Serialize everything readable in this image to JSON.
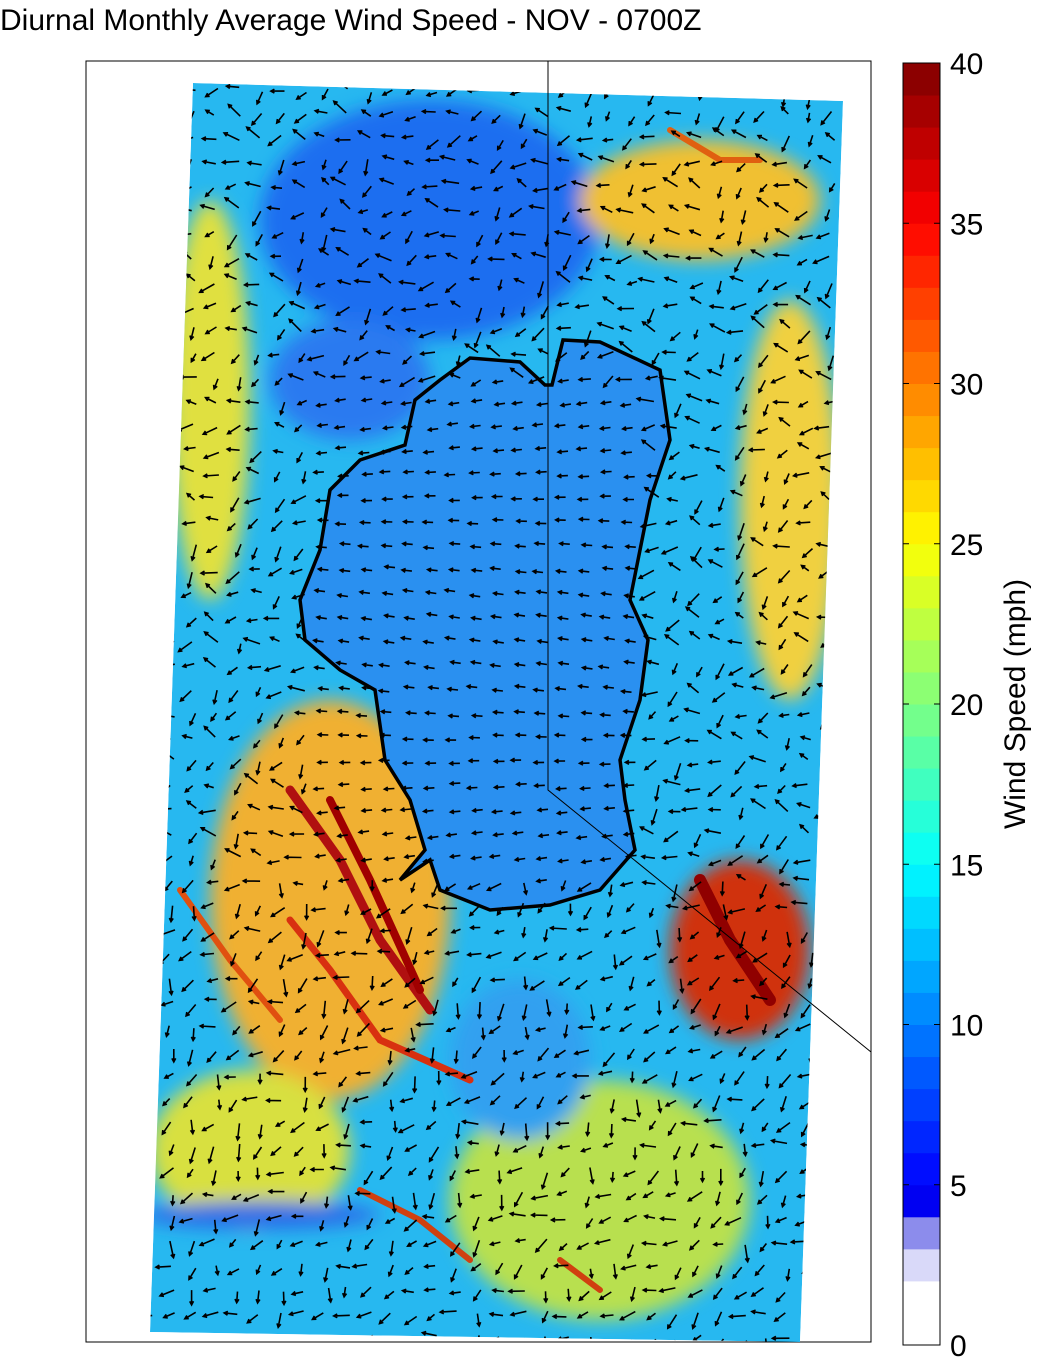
{
  "title": "Diurnal Monthly Average Wind Speed - NOV - 0700Z",
  "colorbar": {
    "label": "Wind Speed (mph)",
    "lim": [
      0,
      40
    ],
    "ticks": [
      0,
      5,
      10,
      15,
      20,
      25,
      30,
      35,
      40
    ],
    "colormap": "jet"
  }
}
